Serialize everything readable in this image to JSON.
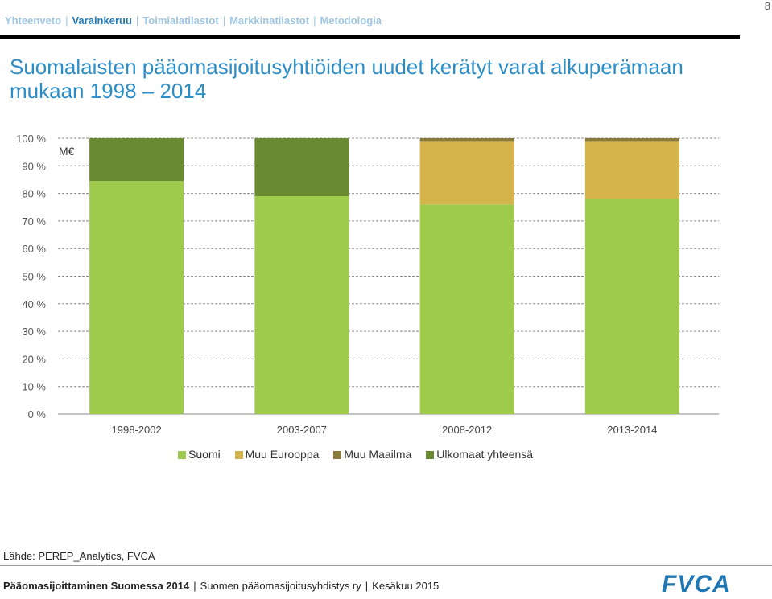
{
  "nav": {
    "items": [
      "Yhteenveto",
      "Varainkeruu",
      "Toimialatilastot",
      "Markkinatilastot",
      "Metodologia"
    ],
    "active_index": 1
  },
  "page_number": "8",
  "title": "Suomalaisten pääomasijoitusyhtiöiden uudet kerätyt varat alkuperämaan mukaan 1998 – 2014",
  "chart_data": {
    "type": "bar",
    "stacked": true,
    "unit_label": "M€",
    "categories": [
      "1998-2002",
      "2003-2007",
      "2008-2012",
      "2013-2014"
    ],
    "series": [
      {
        "name": "Suomi",
        "color": "#9fcb4d",
        "values": [
          84.5,
          79,
          76,
          78
        ]
      },
      {
        "name": "Muu Eurooppa",
        "color": "#d4b44b",
        "values": [
          0,
          0,
          23,
          21
        ]
      },
      {
        "name": "Muu Maailma",
        "color": "#8a7a3c",
        "values": [
          0,
          0,
          1,
          1
        ]
      },
      {
        "name": "Ulkomaat yhteensä",
        "color": "#6a8a32",
        "values": [
          15.5,
          21,
          0,
          0
        ]
      }
    ],
    "y_ticks": [
      "0 %",
      "10 %",
      "20 %",
      "30 %",
      "40 %",
      "50 %",
      "60 %",
      "70 %",
      "80 %",
      "90 %",
      "100 %"
    ],
    "ylim": [
      0,
      100
    ],
    "grid": true,
    "legend_position": "bottom"
  },
  "source": "Lähde: PEREP_Analytics, FVCA",
  "footer": {
    "left_bold": "Pääomasijoittaminen Suomessa 2014",
    "middle": "Suomen pääomasijoitusyhdistys ry",
    "right": "Kesäkuu 2015"
  },
  "logo_text": "FVCA"
}
